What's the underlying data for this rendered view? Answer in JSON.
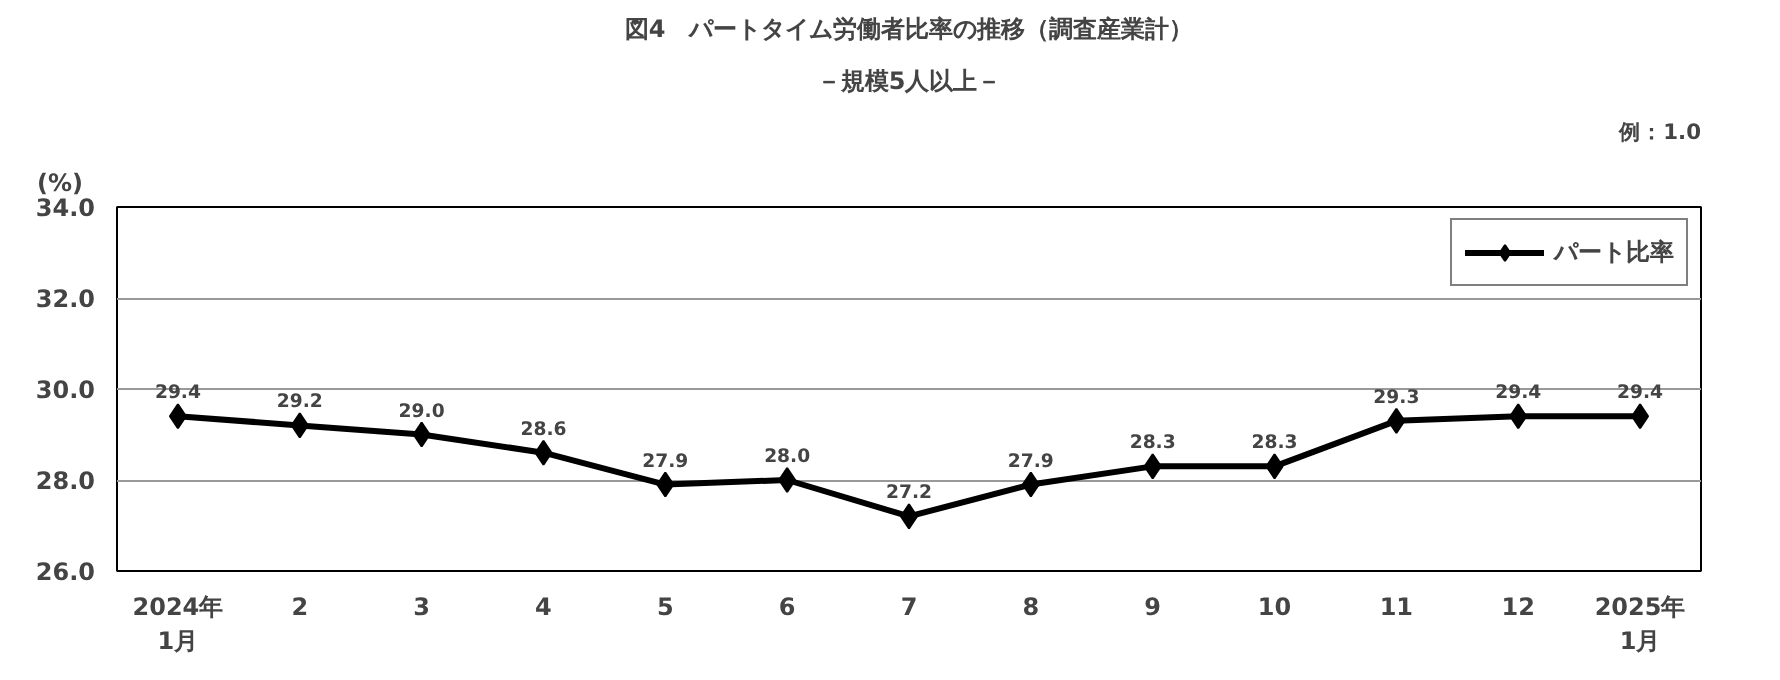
{
  "chart_data": {
    "type": "line",
    "title": "図4　パートタイム労働者比率の推移（調査産業計）",
    "subtitle": "－規模5人以上－",
    "ylabel": "(%)",
    "annotations": [
      "例：1.0"
    ],
    "categories": [
      "2024年\n1月",
      "2",
      "3",
      "4",
      "5",
      "6",
      "7",
      "8",
      "9",
      "10",
      "11",
      "12",
      "2025年\n1月"
    ],
    "series": [
      {
        "name": "パート比率",
        "color": "#000000",
        "values": [
          29.4,
          29.2,
          29.0,
          28.6,
          27.9,
          28.0,
          27.2,
          27.9,
          28.3,
          28.3,
          29.3,
          29.4,
          29.4
        ]
      }
    ],
    "value_labels": [
      "29.4",
      "29.2",
      "29.0",
      "28.6",
      "27.9",
      "28.0",
      "27.2",
      "27.9",
      "28.3",
      "28.3",
      "29.3",
      "29.4",
      "29.4"
    ],
    "ylim": [
      26.0,
      34.0
    ],
    "yticks": [
      {
        "value": 26,
        "label": "26.0"
      },
      {
        "value": 28,
        "label": "28.0"
      },
      {
        "value": 30,
        "label": "30.0"
      },
      {
        "value": 32,
        "label": "32.0"
      },
      {
        "value": 34,
        "label": "34.0"
      }
    ],
    "grid": "y",
    "legend": "top right",
    "marker": "diamond",
    "line_style": "solid"
  }
}
